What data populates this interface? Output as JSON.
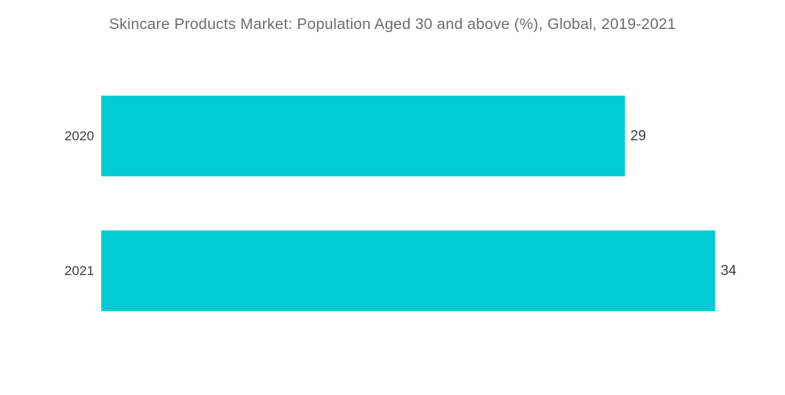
{
  "chart_data": {
    "type": "bar",
    "orientation": "horizontal",
    "title": "Skincare Products Market: Population Aged 30 and above (%), Global, 2019-2021",
    "categories": [
      "2020",
      "2021"
    ],
    "values": [
      29,
      34
    ],
    "xlabel": "",
    "ylabel": "",
    "xlim": [
      0,
      40
    ],
    "grid": false,
    "legend": false,
    "value_labels_position": "outside-end",
    "colors": {
      "bar": "#00cdd3",
      "title_text": "#6d6d6d",
      "label_text": "#3c3c3c",
      "background": "#ffffff"
    }
  }
}
